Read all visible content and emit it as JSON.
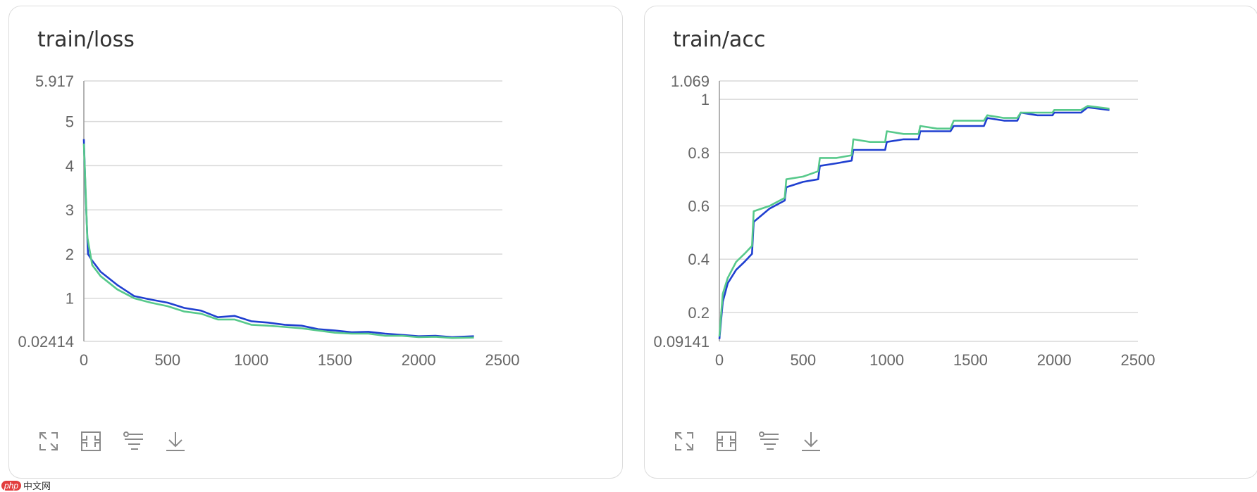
{
  "colors": {
    "series_blue": "#1f3fd0",
    "series_green": "#57c98b",
    "grid": "#d9d9d9",
    "axis": "#9a9a9a"
  },
  "toolbar_icons": [
    "expand-icon",
    "fit-icon",
    "filter-icon",
    "download-icon"
  ],
  "watermark": {
    "logo": "php",
    "text": "中文网"
  },
  "chart_data": [
    {
      "type": "line",
      "title": "train/loss",
      "xlim": [
        0,
        2500
      ],
      "ylim": [
        0.02414,
        5.917
      ],
      "x_ticks": [
        0,
        500,
        1000,
        1500,
        2000,
        2500
      ],
      "y_ticks": [
        "0.02414",
        "1",
        "2",
        "3",
        "4",
        "5",
        "5.917"
      ],
      "grid": true,
      "series": [
        {
          "color": "#1f3fd0",
          "points": [
            [
              0,
              4.6
            ],
            [
              10,
              3.4
            ],
            [
              25,
              2.0
            ],
            [
              50,
              1.85
            ],
            [
              100,
              1.6
            ],
            [
              200,
              1.3
            ],
            [
              300,
              1.05
            ],
            [
              400,
              0.97
            ],
            [
              500,
              0.9
            ],
            [
              600,
              0.78
            ],
            [
              700,
              0.72
            ],
            [
              800,
              0.57
            ],
            [
              900,
              0.6
            ],
            [
              1000,
              0.48
            ],
            [
              1100,
              0.45
            ],
            [
              1200,
              0.4
            ],
            [
              1300,
              0.38
            ],
            [
              1400,
              0.3
            ],
            [
              1500,
              0.27
            ],
            [
              1600,
              0.23
            ],
            [
              1700,
              0.24
            ],
            [
              1800,
              0.2
            ],
            [
              1900,
              0.17
            ],
            [
              2000,
              0.14
            ],
            [
              2100,
              0.15
            ],
            [
              2200,
              0.12
            ],
            [
              2330,
              0.14
            ]
          ]
        },
        {
          "color": "#57c98b",
          "points": [
            [
              0,
              4.5
            ],
            [
              10,
              3.5
            ],
            [
              20,
              2.4
            ],
            [
              50,
              1.75
            ],
            [
              100,
              1.5
            ],
            [
              200,
              1.2
            ],
            [
              300,
              1.0
            ],
            [
              400,
              0.9
            ],
            [
              500,
              0.82
            ],
            [
              600,
              0.7
            ],
            [
              700,
              0.65
            ],
            [
              800,
              0.52
            ],
            [
              900,
              0.52
            ],
            [
              1000,
              0.4
            ],
            [
              1100,
              0.38
            ],
            [
              1200,
              0.35
            ],
            [
              1300,
              0.32
            ],
            [
              1400,
              0.27
            ],
            [
              1500,
              0.22
            ],
            [
              1600,
              0.2
            ],
            [
              1700,
              0.2
            ],
            [
              1800,
              0.15
            ],
            [
              1900,
              0.15
            ],
            [
              2000,
              0.12
            ],
            [
              2100,
              0.13
            ],
            [
              2200,
              0.1
            ],
            [
              2330,
              0.11
            ]
          ]
        }
      ]
    },
    {
      "type": "line",
      "title": "train/acc",
      "xlim": [
        0,
        2500
      ],
      "ylim": [
        0.09141,
        1.069
      ],
      "x_ticks": [
        0,
        500,
        1000,
        1500,
        2000,
        2500
      ],
      "y_ticks": [
        "0.09141",
        "0.2",
        "0.4",
        "0.6",
        "0.8",
        "1",
        "1.069"
      ],
      "grid": true,
      "series": [
        {
          "color": "#1f3fd0",
          "points": [
            [
              0,
              0.1
            ],
            [
              20,
              0.24
            ],
            [
              50,
              0.31
            ],
            [
              100,
              0.36
            ],
            [
              150,
              0.39
            ],
            [
              195,
              0.42
            ],
            [
              205,
              0.54
            ],
            [
              300,
              0.59
            ],
            [
              390,
              0.62
            ],
            [
              400,
              0.67
            ],
            [
              500,
              0.69
            ],
            [
              590,
              0.7
            ],
            [
              600,
              0.75
            ],
            [
              700,
              0.76
            ],
            [
              790,
              0.77
            ],
            [
              800,
              0.81
            ],
            [
              900,
              0.81
            ],
            [
              990,
              0.81
            ],
            [
              1000,
              0.84
            ],
            [
              1100,
              0.85
            ],
            [
              1190,
              0.85
            ],
            [
              1200,
              0.88
            ],
            [
              1300,
              0.88
            ],
            [
              1380,
              0.88
            ],
            [
              1400,
              0.9
            ],
            [
              1500,
              0.9
            ],
            [
              1580,
              0.9
            ],
            [
              1600,
              0.93
            ],
            [
              1700,
              0.92
            ],
            [
              1780,
              0.92
            ],
            [
              1800,
              0.95
            ],
            [
              1900,
              0.94
            ],
            [
              1990,
              0.94
            ],
            [
              2000,
              0.95
            ],
            [
              2100,
              0.95
            ],
            [
              2160,
              0.95
            ],
            [
              2200,
              0.97
            ],
            [
              2330,
              0.96
            ]
          ]
        },
        {
          "color": "#57c98b",
          "points": [
            [
              0,
              0.11
            ],
            [
              20,
              0.27
            ],
            [
              50,
              0.33
            ],
            [
              100,
              0.39
            ],
            [
              150,
              0.42
            ],
            [
              195,
              0.45
            ],
            [
              205,
              0.58
            ],
            [
              300,
              0.6
            ],
            [
              390,
              0.63
            ],
            [
              400,
              0.7
            ],
            [
              500,
              0.71
            ],
            [
              590,
              0.73
            ],
            [
              600,
              0.78
            ],
            [
              700,
              0.78
            ],
            [
              790,
              0.79
            ],
            [
              800,
              0.85
            ],
            [
              900,
              0.84
            ],
            [
              990,
              0.84
            ],
            [
              1000,
              0.88
            ],
            [
              1100,
              0.87
            ],
            [
              1190,
              0.87
            ],
            [
              1200,
              0.9
            ],
            [
              1300,
              0.89
            ],
            [
              1380,
              0.89
            ],
            [
              1400,
              0.92
            ],
            [
              1500,
              0.92
            ],
            [
              1580,
              0.92
            ],
            [
              1600,
              0.94
            ],
            [
              1700,
              0.93
            ],
            [
              1780,
              0.93
            ],
            [
              1800,
              0.95
            ],
            [
              1900,
              0.95
            ],
            [
              1990,
              0.95
            ],
            [
              2000,
              0.96
            ],
            [
              2100,
              0.96
            ],
            [
              2160,
              0.96
            ],
            [
              2200,
              0.975
            ],
            [
              2330,
              0.965
            ]
          ]
        }
      ]
    }
  ]
}
